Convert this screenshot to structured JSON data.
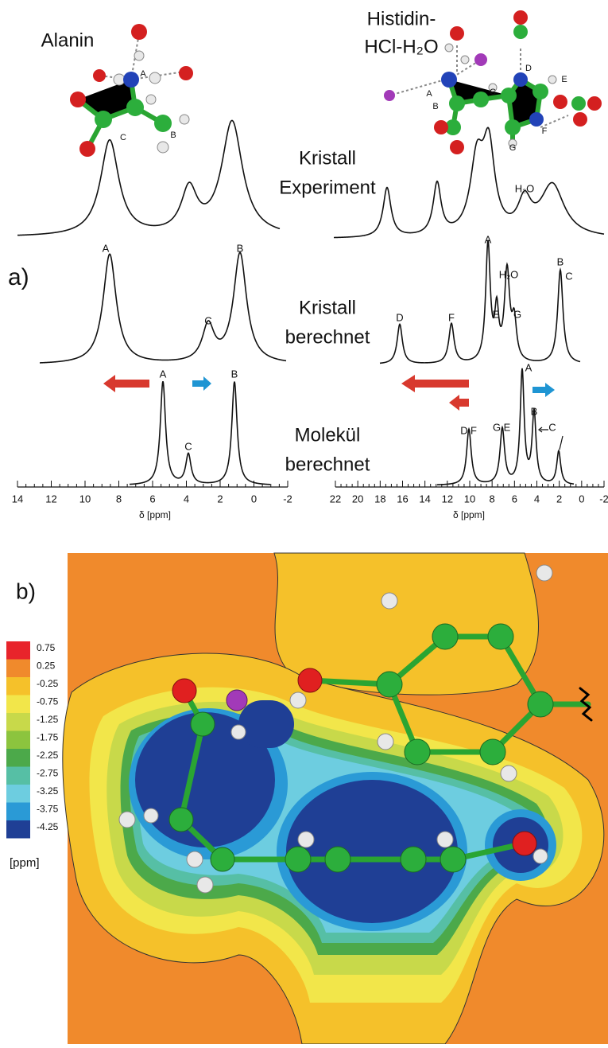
{
  "panel_a": {
    "label": "a)",
    "alanin_title": "Alanin",
    "histidin_title": [
      "Histidin-",
      "HCl-H₂O"
    ],
    "row_labels": [
      [
        "Kristall",
        "Experiment"
      ],
      [
        "Kristall",
        "berechnet"
      ],
      [
        "Molekül",
        "berechnet"
      ]
    ],
    "alanin_atoms": [
      "A",
      "B",
      "C"
    ],
    "histidin_atoms": [
      "A",
      "B",
      "C",
      "D",
      "E",
      "F",
      "G"
    ],
    "exp_peak_labels": [
      "H₂O"
    ],
    "alanin_calc_peaks": [
      "A",
      "C",
      "B"
    ],
    "histidin_calc_peaks": [
      "D",
      "F",
      "E",
      "A",
      "H₂O",
      "G",
      "B",
      "C"
    ],
    "alanin_mol_peaks": [
      "A",
      "C",
      "B"
    ],
    "histidin_mol_peaks": [
      "D",
      "F",
      "G",
      "E",
      "A",
      "B",
      "C"
    ],
    "left_axis": {
      "ticks": [
        14,
        12,
        10,
        8,
        6,
        4,
        2,
        0,
        -2
      ],
      "label": "δ [ppm]"
    },
    "right_axis": {
      "ticks": [
        22,
        20,
        18,
        16,
        14,
        12,
        10,
        8,
        6,
        4,
        2,
        0,
        -2
      ],
      "label": "δ [ppm]"
    }
  },
  "panel_b": {
    "label": "b)",
    "colorbar": {
      "labels": [
        0.75,
        0.25,
        -0.25,
        -0.75,
        -1.25,
        -1.75,
        -2.25,
        -2.75,
        -3.25,
        -3.75,
        -4.25
      ],
      "unit": "[ppm]"
    }
  }
}
